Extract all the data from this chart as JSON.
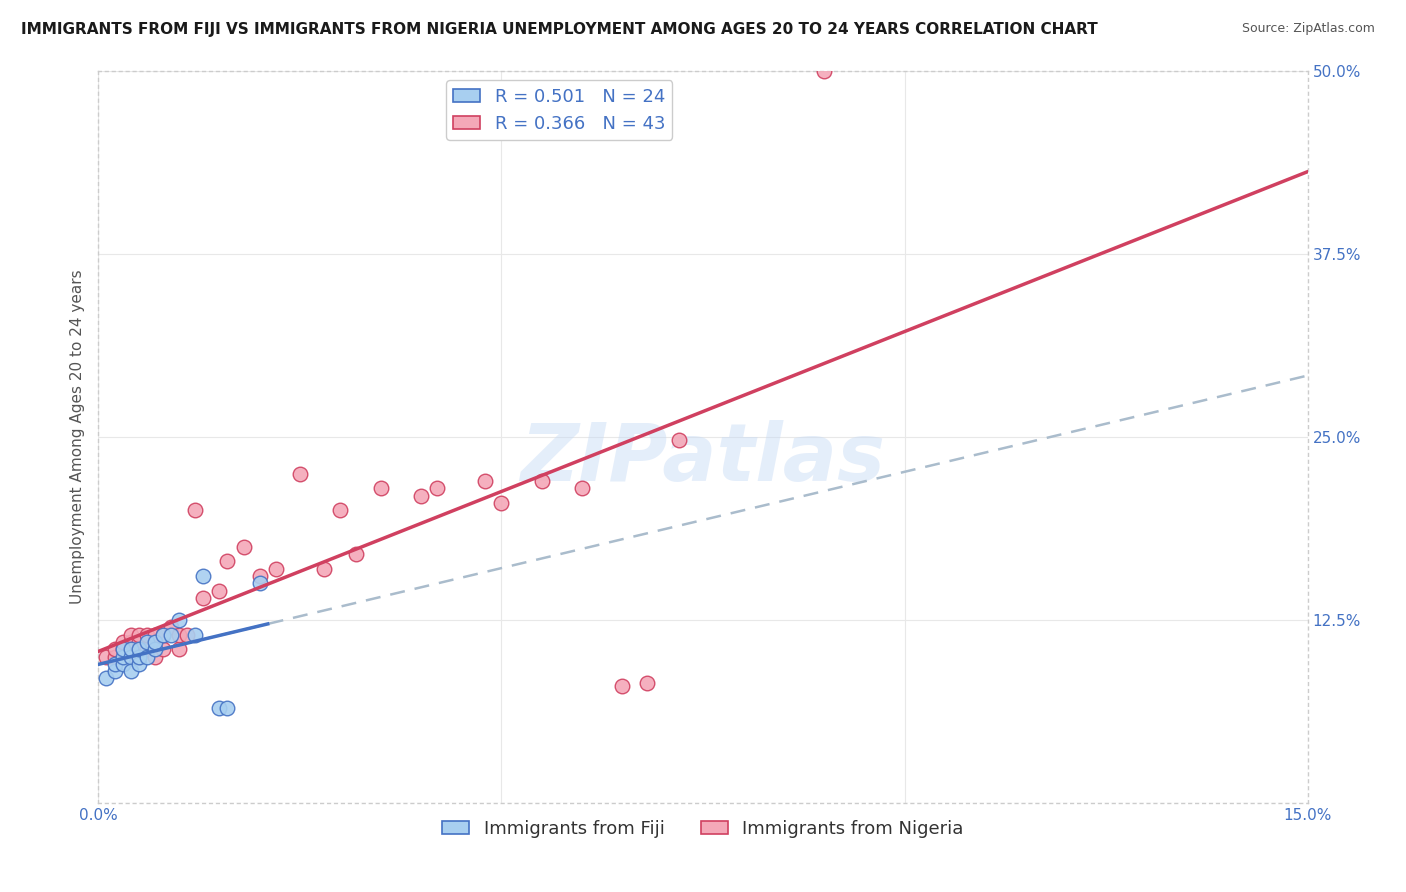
{
  "title": "IMMIGRANTS FROM FIJI VS IMMIGRANTS FROM NIGERIA UNEMPLOYMENT AMONG AGES 20 TO 24 YEARS CORRELATION CHART",
  "source": "Source: ZipAtlas.com",
  "ylabel": "Unemployment Among Ages 20 to 24 years",
  "xlim": [
    0.0,
    0.15
  ],
  "ylim": [
    0.0,
    0.5
  ],
  "yticks": [
    0.0,
    0.125,
    0.25,
    0.375,
    0.5
  ],
  "yticklabels": [
    "",
    "12.5%",
    "25.0%",
    "37.5%",
    "50.0%"
  ],
  "fiji_color": "#a8cff0",
  "fiji_line_color": "#4472c4",
  "fiji_dash_color": "#aabccc",
  "nigeria_color": "#f4a8b8",
  "nigeria_line_color": "#d04060",
  "fiji_x": [
    0.001,
    0.002,
    0.002,
    0.003,
    0.003,
    0.003,
    0.004,
    0.004,
    0.004,
    0.005,
    0.005,
    0.005,
    0.006,
    0.006,
    0.007,
    0.007,
    0.008,
    0.009,
    0.01,
    0.012,
    0.013,
    0.015,
    0.016,
    0.02
  ],
  "fiji_y": [
    0.085,
    0.09,
    0.095,
    0.095,
    0.1,
    0.105,
    0.1,
    0.105,
    0.09,
    0.095,
    0.1,
    0.105,
    0.1,
    0.11,
    0.105,
    0.11,
    0.115,
    0.115,
    0.125,
    0.115,
    0.155,
    0.065,
    0.065,
    0.15
  ],
  "nigeria_x": [
    0.001,
    0.002,
    0.002,
    0.003,
    0.003,
    0.004,
    0.004,
    0.004,
    0.005,
    0.005,
    0.005,
    0.006,
    0.006,
    0.007,
    0.007,
    0.008,
    0.008,
    0.009,
    0.01,
    0.01,
    0.011,
    0.012,
    0.013,
    0.015,
    0.016,
    0.018,
    0.02,
    0.022,
    0.025,
    0.028,
    0.03,
    0.032,
    0.035,
    0.04,
    0.042,
    0.048,
    0.05,
    0.055,
    0.06,
    0.065,
    0.068,
    0.072,
    0.09
  ],
  "nigeria_y": [
    0.1,
    0.1,
    0.105,
    0.105,
    0.11,
    0.1,
    0.11,
    0.115,
    0.1,
    0.11,
    0.115,
    0.105,
    0.115,
    0.1,
    0.115,
    0.105,
    0.115,
    0.12,
    0.105,
    0.115,
    0.115,
    0.2,
    0.14,
    0.145,
    0.165,
    0.175,
    0.155,
    0.16,
    0.225,
    0.16,
    0.2,
    0.17,
    0.215,
    0.21,
    0.215,
    0.22,
    0.205,
    0.22,
    0.215,
    0.08,
    0.082,
    0.248,
    0.5
  ],
  "watermark_text": "ZIPatlas",
  "background_color": "#ffffff",
  "grid_color": "#e8e8e8",
  "title_fontsize": 11,
  "axis_label_fontsize": 11,
  "tick_fontsize": 11,
  "legend_fontsize": 13,
  "tick_color": "#4472c4"
}
